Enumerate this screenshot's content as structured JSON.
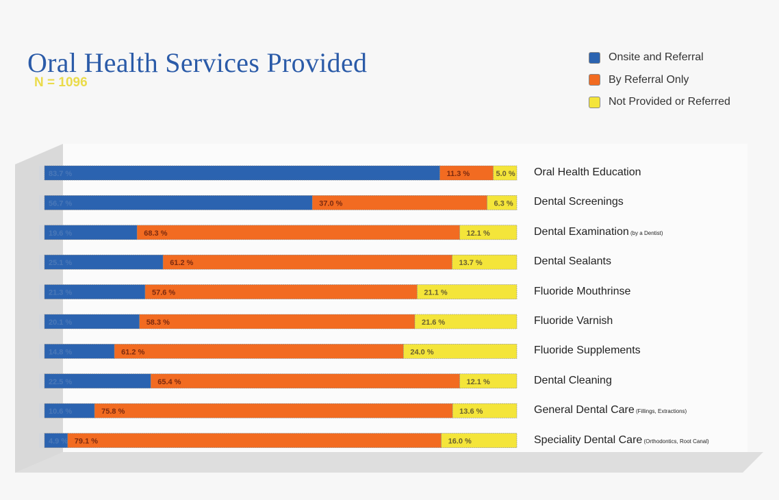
{
  "chart_data": {
    "type": "bar",
    "orientation": "horizontal",
    "stacked": true,
    "title": "Oral Health Services Provided",
    "subtitle": "N = 1096",
    "legend_placement": "top-right",
    "xlim": [
      0,
      100
    ],
    "categories": [
      {
        "name": "Oral Health Education",
        "note": ""
      },
      {
        "name": "Dental Screenings",
        "note": ""
      },
      {
        "name": "Dental Examination",
        "note": "(by a Dentist)"
      },
      {
        "name": "Dental Sealants",
        "note": ""
      },
      {
        "name": "Fluoride Mouthrinse",
        "note": ""
      },
      {
        "name": "Fluoride Varnish",
        "note": ""
      },
      {
        "name": "Fluoride Supplements",
        "note": ""
      },
      {
        "name": "Dental Cleaning",
        "note": ""
      },
      {
        "name": "General Dental Care",
        "note": "(Fillings, Extractions)"
      },
      {
        "name": "Speciality Dental Care",
        "note": "(Orthodontics, Root Canal)"
      }
    ],
    "series": [
      {
        "name": "Onsite and Referral",
        "color": "#2b63b0",
        "values": [
          83.7,
          56.7,
          19.6,
          25.1,
          21.3,
          20.1,
          14.8,
          22.5,
          10.6,
          4.9
        ]
      },
      {
        "name": "By Referral Only",
        "color": "#f26b21",
        "values": [
          11.3,
          37.0,
          68.3,
          61.2,
          57.6,
          58.3,
          61.2,
          65.4,
          75.8,
          79.1
        ]
      },
      {
        "name": "Not Provided or Referred",
        "color": "#f4e53a",
        "values": [
          5.0,
          6.3,
          12.1,
          13.7,
          21.1,
          21.6,
          24.0,
          12.1,
          13.6,
          16.0
        ]
      }
    ]
  }
}
